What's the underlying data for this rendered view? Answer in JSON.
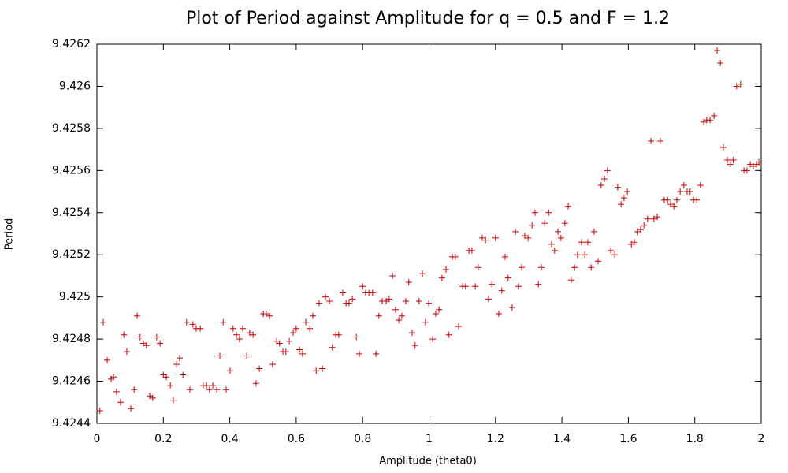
{
  "chart_data": {
    "type": "scatter",
    "title": "Plot of Period against Amplitude for q = 0.5 and F = 1.2",
    "x_label": "Amplitude (theta0)",
    "y_label": "Period",
    "xlim": [
      0,
      2
    ],
    "ylim": [
      9.4244,
      9.4262
    ],
    "xticks": [
      0,
      0.2,
      0.4,
      0.6,
      0.8,
      1,
      1.2,
      1.4,
      1.6,
      1.8,
      2
    ],
    "yticks": [
      9.4244,
      9.4246,
      9.4248,
      9.425,
      9.4252,
      9.4254,
      9.4256,
      9.4258,
      9.426,
      9.4262
    ],
    "grid": false,
    "series": [
      {
        "color": "#cc0000",
        "marker": "+",
        "x": [
          0.009,
          0.019,
          0.031,
          0.043,
          0.05,
          0.059,
          0.071,
          0.081,
          0.09,
          0.102,
          0.112,
          0.121,
          0.13,
          0.14,
          0.149,
          0.159,
          0.168,
          0.18,
          0.19,
          0.2,
          0.209,
          0.221,
          0.23,
          0.24,
          0.249,
          0.259,
          0.27,
          0.28,
          0.289,
          0.299,
          0.311,
          0.32,
          0.33,
          0.339,
          0.349,
          0.361,
          0.37,
          0.38,
          0.389,
          0.401,
          0.41,
          0.42,
          0.429,
          0.439,
          0.451,
          0.46,
          0.47,
          0.479,
          0.489,
          0.501,
          0.51,
          0.52,
          0.529,
          0.541,
          0.55,
          0.56,
          0.569,
          0.579,
          0.591,
          0.6,
          0.61,
          0.619,
          0.629,
          0.641,
          0.65,
          0.66,
          0.669,
          0.679,
          0.688,
          0.7,
          0.709,
          0.719,
          0.728,
          0.74,
          0.75,
          0.759,
          0.769,
          0.781,
          0.79,
          0.8,
          0.809,
          0.819,
          0.83,
          0.84,
          0.849,
          0.859,
          0.871,
          0.88,
          0.89,
          0.899,
          0.909,
          0.918,
          0.93,
          0.939,
          0.949,
          0.958,
          0.97,
          0.98,
          0.989,
          0.999,
          1.011,
          1.02,
          1.03,
          1.039,
          1.051,
          1.06,
          1.07,
          1.079,
          1.089,
          1.101,
          1.11,
          1.12,
          1.129,
          1.139,
          1.148,
          1.16,
          1.17,
          1.179,
          1.189,
          1.2,
          1.21,
          1.219,
          1.229,
          1.238,
          1.25,
          1.26,
          1.269,
          1.279,
          1.288,
          1.298,
          1.31,
          1.319,
          1.329,
          1.338,
          1.348,
          1.36,
          1.369,
          1.378,
          1.388,
          1.397,
          1.409,
          1.419,
          1.428,
          1.438,
          1.447,
          1.459,
          1.469,
          1.478,
          1.488,
          1.497,
          1.509,
          1.518,
          1.528,
          1.537,
          1.547,
          1.559,
          1.568,
          1.578,
          1.587,
          1.597,
          1.609,
          1.618,
          1.628,
          1.637,
          1.647,
          1.658,
          1.668,
          1.677,
          1.687,
          1.696,
          1.708,
          1.718,
          1.727,
          1.737,
          1.746,
          1.756,
          1.767,
          1.777,
          1.786,
          1.796,
          1.806,
          1.817,
          1.827,
          1.836,
          1.846,
          1.858,
          1.867,
          1.877,
          1.886,
          1.898,
          1.907,
          1.916,
          1.926,
          1.938,
          1.948,
          1.957,
          1.967,
          1.976,
          1.986,
          1.993
        ],
        "values": [
          9.42446,
          9.42488,
          9.4247,
          9.42461,
          9.42462,
          9.42455,
          9.4245,
          9.42482,
          9.42474,
          9.42447,
          9.42456,
          9.42491,
          9.42481,
          9.42478,
          9.42477,
          9.42453,
          9.42452,
          9.42481,
          9.42478,
          9.42463,
          9.42462,
          9.42458,
          9.42451,
          9.42468,
          9.42471,
          9.42463,
          9.42488,
          9.42456,
          9.42487,
          9.42485,
          9.42485,
          9.42458,
          9.42458,
          9.42456,
          9.42458,
          9.42456,
          9.42472,
          9.42488,
          9.42456,
          9.42465,
          9.42485,
          9.42482,
          9.4248,
          9.42485,
          9.42472,
          9.42483,
          9.42482,
          9.42459,
          9.42466,
          9.42492,
          9.42492,
          9.42491,
          9.42468,
          9.42479,
          9.42478,
          9.42474,
          9.42474,
          9.42479,
          9.42483,
          9.42485,
          9.42475,
          9.42473,
          9.42488,
          9.42485,
          9.42491,
          9.42465,
          9.42497,
          9.42466,
          9.425,
          9.42498,
          9.42476,
          9.42482,
          9.42482,
          9.42502,
          9.42497,
          9.42497,
          9.42499,
          9.42481,
          9.42473,
          9.42505,
          9.42502,
          9.42502,
          9.42502,
          9.42473,
          9.42491,
          9.42498,
          9.42498,
          9.42499,
          9.4251,
          9.42494,
          9.42489,
          9.42491,
          9.42498,
          9.42507,
          9.42483,
          9.42477,
          9.42498,
          9.42511,
          9.42488,
          9.42497,
          9.4248,
          9.42492,
          9.42494,
          9.42509,
          9.42513,
          9.42482,
          9.42519,
          9.42519,
          9.42486,
          9.42505,
          9.42505,
          9.42522,
          9.42522,
          9.42505,
          9.42514,
          9.42528,
          9.42527,
          9.42499,
          9.42506,
          9.42528,
          9.42492,
          9.42503,
          9.42519,
          9.42509,
          9.42495,
          9.42531,
          9.42505,
          9.42514,
          9.42529,
          9.42528,
          9.42534,
          9.4254,
          9.42506,
          9.42514,
          9.42535,
          9.4254,
          9.42525,
          9.42522,
          9.42531,
          9.42528,
          9.42535,
          9.42543,
          9.42508,
          9.42514,
          9.4252,
          9.42526,
          9.4252,
          9.42526,
          9.42514,
          9.42531,
          9.42517,
          9.42553,
          9.42556,
          9.4256,
          9.42522,
          9.4252,
          9.42552,
          9.42544,
          9.42547,
          9.4255,
          9.42525,
          9.42526,
          9.42531,
          9.42532,
          9.42534,
          9.42537,
          9.42574,
          9.42537,
          9.42538,
          9.42574,
          9.42546,
          9.42546,
          9.42544,
          9.42543,
          9.42546,
          9.4255,
          9.42553,
          9.4255,
          9.4255,
          9.42546,
          9.42546,
          9.42553,
          9.42583,
          9.42584,
          9.42584,
          9.42586,
          9.42617,
          9.42611,
          9.42571,
          9.42565,
          9.42563,
          9.42565,
          9.426,
          9.42601,
          9.4256,
          9.4256,
          9.42563,
          9.42562,
          9.42563,
          9.42564
        ]
      }
    ]
  }
}
